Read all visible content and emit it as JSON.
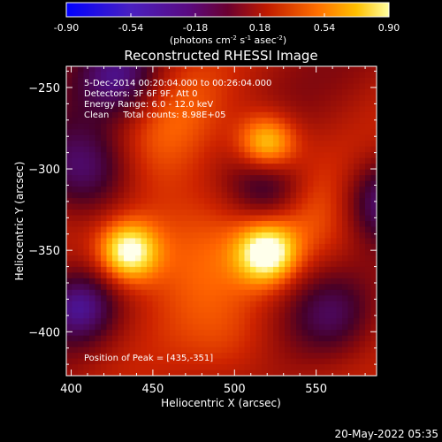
{
  "chart_data": {
    "type": "heatmap",
    "title": "Reconstructed RHESSI Image",
    "xlabel": "Heliocentric X (arcsec)",
    "ylabel": "Heliocentric Y (arcsec)",
    "x_ticks": [
      400,
      450,
      500,
      550
    ],
    "y_ticks": [
      -250,
      -300,
      -350,
      -400
    ],
    "xlim": [
      397,
      587
    ],
    "ylim": [
      -427,
      -237
    ],
    "colorbar": {
      "ticks": [
        "-0.90",
        "-0.54",
        "-0.18",
        "0.18",
        "0.54",
        "0.90"
      ],
      "range": [
        -0.9,
        0.9
      ],
      "label_main": "(photons cm",
      "label_exp1": "-2",
      "label_mid": " s",
      "label_exp2": "-1",
      "label_tail": " asec",
      "label_exp3": "-2",
      "label_close": ")"
    },
    "annotations": [
      "5-Dec-2014 00:20:04.000 to 00:26:04.000",
      "Detectors: 3F 6F 9F, Att 0",
      "Energy Range: 6.0 - 12.0 keV",
      "Clean     Total counts: 8.98E+05"
    ],
    "peak_label": "Position of Peak = [435,-351]",
    "sources": [
      {
        "x": 435,
        "y": -351,
        "value": 0.9
      },
      {
        "x": 520,
        "y": -285,
        "value": 0.82
      },
      {
        "x": 520,
        "y": -352,
        "value": 0.85
      }
    ],
    "colormap": [
      "#0000ff",
      "#5a1aa8",
      "#380050",
      "#6a0a20",
      "#c41a08",
      "#ff5a00",
      "#ffb000",
      "#ffff80",
      "#ffffff"
    ]
  },
  "footer": {
    "timestamp": "20-May-2022 05:35"
  }
}
